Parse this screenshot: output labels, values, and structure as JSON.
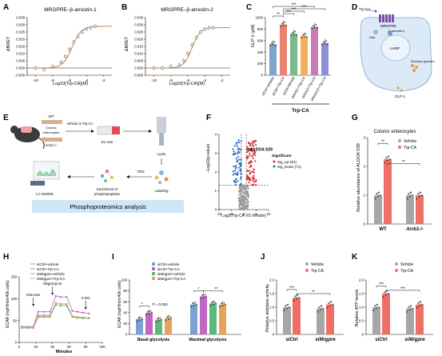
{
  "panels": {
    "A": {
      "letter": "A",
      "title": "MRGPRE–β-arrestin-1",
      "ylabel": "ΔBRET",
      "xlabel": "Log10[Trp-CA](M)",
      "ymin": -0.005,
      "ymax": 0.035,
      "yticks": [
        "-0.005",
        "0.000",
        "0.005",
        "0.010",
        "0.015",
        "0.020",
        "0.025",
        "0.030",
        "0.035"
      ],
      "xmin": -11,
      "xmax": -1,
      "xticks": [
        "-10",
        "-8",
        "-6",
        "-4",
        "-2"
      ],
      "points": [
        {
          "x": -10,
          "y": 0.0
        },
        {
          "x": -9,
          "y": -0.001
        },
        {
          "x": -8,
          "y": 0.001
        },
        {
          "x": -7,
          "y": 0.004
        },
        {
          "x": -6.5,
          "y": 0.008
        },
        {
          "x": -6,
          "y": 0.013
        },
        {
          "x": -5.5,
          "y": 0.018
        },
        {
          "x": -5,
          "y": 0.022
        },
        {
          "x": -4.5,
          "y": 0.025
        },
        {
          "x": -4,
          "y": 0.027
        },
        {
          "x": -3.5,
          "y": 0.028
        },
        {
          "x": -3,
          "y": 0.029
        }
      ],
      "fit": {
        "bottom": 0.0,
        "top": 0.029,
        "logec50": -5.7,
        "hill": 0.8
      }
    },
    "B": {
      "letter": "B",
      "title": "MRGPRE–β-arrestin-2",
      "ylabel": "ΔBRET",
      "xlabel": "Log10[Trp-CA](M)",
      "ymin": -0.005,
      "ymax": 0.035,
      "yticks": [
        "-0.005",
        "0.000",
        "0.005",
        "0.010",
        "0.015",
        "0.020",
        "0.025",
        "0.030",
        "0.035"
      ],
      "xmin": -11,
      "xmax": -1,
      "xticks": [
        "-10",
        "-8",
        "-6",
        "-4",
        "-2"
      ],
      "points": [
        {
          "x": -10,
          "y": 0.0
        },
        {
          "x": -9,
          "y": 0.0
        },
        {
          "x": -8,
          "y": 0.001
        },
        {
          "x": -7,
          "y": 0.002
        },
        {
          "x": -6.5,
          "y": 0.005
        },
        {
          "x": -6,
          "y": 0.01
        },
        {
          "x": -5.5,
          "y": 0.016
        },
        {
          "x": -5,
          "y": 0.021
        },
        {
          "x": -4.5,
          "y": 0.025
        },
        {
          "x": -4,
          "y": 0.027
        },
        {
          "x": -3.5,
          "y": 0.028
        },
        {
          "x": -3,
          "y": 0.028
        }
      ],
      "fit": {
        "bottom": 0.0,
        "top": 0.028,
        "logec50": -5.5,
        "hill": 0.9
      }
    },
    "C": {
      "letter": "C",
      "ylabel": "GLP-1 (pM)",
      "ymax": 1000,
      "yticks": [
        "0",
        "200",
        "400",
        "600",
        "800",
        "1000"
      ],
      "categories": [
        "siCtrl+vehicle",
        "siCtrl+Trp-CA",
        "siCtrl+NF449",
        "siArrb1+Trp-CA",
        "siArrb2+Trp-CA",
        "siArrb1/2+Trp-CA"
      ],
      "values": [
        540,
        880,
        720,
        680,
        840,
        560
      ],
      "bar_colors": [
        "#7ea3cf",
        "#e9836f",
        "#79b98c",
        "#f2b25d",
        "#c97bb6",
        "#8b8fd6"
      ],
      "group_label": "Trp-CA",
      "stars": [
        "**",
        "***",
        "***",
        "***",
        "***"
      ]
    },
    "D": {
      "letter": "D",
      "labels": {
        "ligand": "Trp-CA",
        "receptor": "MRGPRE",
        "gs": "Gαs",
        "barr": "β-arrestin-1",
        "camp": "cAMP",
        "glp1": "GLP-1",
        "granule": "Secretory granules"
      }
    },
    "E": {
      "letter": "E",
      "wt": "WT",
      "ko": "Arrb1-/-",
      "colonic": "Colonic",
      "enterocytes": "enterocytes",
      "treatment": "Vehicle or Trp-CA",
      "exvivo": "Ex vivo",
      "lysis": "Lysis",
      "tio2": "TiO2",
      "labeling": "Labeling",
      "enrichment": "Enrichment of",
      "phospho": "phosphopeptides",
      "lcms": "LC-MS/MS",
      "banner": "Phosphoproteomics analysis"
    },
    "F": {
      "letter": "F",
      "ylabel": "−Log10(p-value)",
      "xlabel": "Log2(Trp-CA VS Vehicle)",
      "hit": "ALDOA S39",
      "legend_title": "Significant",
      "legend_up": "Sig_Up (91)",
      "legend_down": "Sig_Down (71)",
      "xmin": -10,
      "xmax": 10,
      "xticks": [
        "-10",
        "-5",
        "0",
        "5",
        "10"
      ],
      "ymin": 0,
      "ymax": 4,
      "yticks": [
        "0",
        "1",
        "2",
        "3",
        "4"
      ],
      "up_color": "#d6333f",
      "down_color": "#2f6fbd",
      "ns_color": "#9a9a9a"
    },
    "G": {
      "letter": "G",
      "title": "Colonic enterocytes",
      "ylabel": "Relative abundance of ALDOA S39",
      "ymax": 3,
      "yticks": [
        "0",
        "1",
        "2",
        "3"
      ],
      "groups": [
        "WT",
        "Arrb1-/-"
      ],
      "series": [
        {
          "name": "Vehicle",
          "values": [
            1.0,
            1.0
          ]
        },
        {
          "name": "Trp-CA",
          "values": [
            2.25,
            1.0
          ]
        }
      ],
      "colors": [
        "#a6a6a6",
        "#ef6f66"
      ],
      "stars": [
        "**",
        "**"
      ]
    },
    "H": {
      "letter": "H",
      "ylabel": "ECAR (mpH/min/40k cells)",
      "xlabel": "Minutes",
      "ymin": 0,
      "ymax": 150,
      "yticks": [
        "0",
        "50",
        "100",
        "150"
      ],
      "xmin": 0,
      "xmax": 100,
      "xticks": [
        "0",
        "20",
        "40",
        "60",
        "80",
        "100"
      ],
      "x": [
        3,
        10,
        17,
        23,
        30,
        37,
        44,
        50,
        57,
        64,
        70,
        77,
        84
      ],
      "series": [
        {
          "name": "siCtrl+vehicle",
          "color": "#7aa0d4",
          "values": [
            34,
            34,
            34,
            62,
            62,
            62,
            90,
            88,
            87,
            60,
            58,
            56,
            56
          ]
        },
        {
          "name": "siCtrl+Trp-CA",
          "color": "#c066c7",
          "values": [
            36,
            36,
            36,
            70,
            70,
            70,
            106,
            104,
            104,
            72,
            70,
            68,
            66
          ]
        },
        {
          "name": "siMrgpre+vehicle",
          "color": "#5ab97b",
          "values": [
            33,
            33,
            33,
            58,
            58,
            58,
            86,
            84,
            84,
            58,
            56,
            55,
            55
          ]
        },
        {
          "name": "siMrgpre+Trp-CA",
          "color": "#e8a25a",
          "values": [
            34,
            34,
            34,
            60,
            60,
            60,
            90,
            88,
            88,
            60,
            58,
            57,
            56
          ]
        }
      ],
      "annotations": [
        "Glucose",
        "Oligomycin",
        "2-DG"
      ],
      "annotation_x": [
        17,
        40,
        80
      ]
    },
    "I": {
      "letter": "I",
      "ylabel": "ECAR (mpH/min/40k cells)",
      "ymax": 100,
      "yticks": [
        "0",
        "20",
        "40",
        "60",
        "80",
        "100"
      ],
      "groups": [
        "Basal glycolysis",
        "Maximal glycolysis"
      ],
      "series": [
        {
          "name": "siCtrl+vehicle",
          "values": [
            28,
            55
          ]
        },
        {
          "name": "siCtrl+Trp-CA",
          "values": [
            40,
            70
          ]
        },
        {
          "name": "siMrgpre+vehicle",
          "values": [
            27,
            57
          ]
        },
        {
          "name": "siMrgpre+Trp-CA",
          "values": [
            30,
            55
          ]
        }
      ],
      "colors": [
        "#7aa0d4",
        "#c066c7",
        "#5ab97b",
        "#e8a25a"
      ],
      "p_label": "P = 0.053",
      "stars": [
        "*",
        "*",
        "**"
      ]
    },
    "J": {
      "letter": "J",
      "ylabel": "Relative aldolase activity",
      "ymax": 2.0,
      "yticks": [
        "0",
        "0.5",
        "1.0",
        "1.5",
        "2.0"
      ],
      "groups": [
        "siCtrl",
        "siMrgpre"
      ],
      "series": [
        {
          "name": "Vehicle",
          "values": [
            1.0,
            0.95
          ]
        },
        {
          "name": "Trp-CA",
          "values": [
            1.35,
            1.1
          ]
        }
      ],
      "colors": [
        "#a6a6a6",
        "#ef6f66"
      ],
      "stars": [
        "***",
        "**"
      ]
    },
    "K": {
      "letter": "K",
      "ylabel": "Relative ATP levels",
      "ymax": 2.0,
      "yticks": [
        "0",
        "0.5",
        "1.0",
        "1.5",
        "2.0"
      ],
      "groups": [
        "siCtrl",
        "siMrgpre"
      ],
      "series": [
        {
          "name": "Vehicle",
          "values": [
            1.0,
            0.95
          ]
        },
        {
          "name": "Trp-CA",
          "values": [
            1.5,
            1.1
          ]
        }
      ],
      "colors": [
        "#a6a6a6",
        "#ef6f66"
      ],
      "stars": [
        "***",
        "***"
      ]
    }
  },
  "chart_data": [
    {
      "type": "scatter",
      "title": "MRGPRE–β-arrestin-1",
      "xlabel": "Log10[Trp-CA](M)",
      "ylabel": "ΔBRET",
      "x": [
        -10,
        -9,
        -8,
        -7,
        -6.5,
        -6,
        -5.5,
        -5,
        -4.5,
        -4,
        -3.5,
        -3
      ],
      "values": [
        0.0,
        -0.001,
        0.001,
        0.004,
        0.008,
        0.013,
        0.018,
        0.022,
        0.025,
        0.027,
        0.028,
        0.029
      ],
      "ylim": [
        -0.005,
        0.035
      ]
    },
    {
      "type": "scatter",
      "title": "MRGPRE–β-arrestin-2",
      "xlabel": "Log10[Trp-CA](M)",
      "ylabel": "ΔBRET",
      "x": [
        -10,
        -9,
        -8,
        -7,
        -6.5,
        -6,
        -5.5,
        -5,
        -4.5,
        -4,
        -3.5,
        -3
      ],
      "values": [
        0.0,
        0.0,
        0.001,
        0.002,
        0.005,
        0.01,
        0.016,
        0.021,
        0.025,
        0.027,
        0.028,
        0.028
      ],
      "ylim": [
        -0.005,
        0.035
      ]
    },
    {
      "type": "bar",
      "categories": [
        "siCtrl+vehicle",
        "siCtrl+Trp-CA",
        "siCtrl+NF449",
        "siArrb1+Trp-CA",
        "siArrb2+Trp-CA",
        "siArrb1/2+Trp-CA"
      ],
      "values": [
        540,
        880,
        720,
        680,
        840,
        560
      ],
      "ylabel": "GLP-1 (pM)",
      "ylim": [
        0,
        1000
      ]
    },
    {
      "type": "bar",
      "title": "Colonic enterocytes",
      "categories": [
        "WT",
        "Arrb1-/-"
      ],
      "series": [
        {
          "name": "Vehicle",
          "values": [
            1.0,
            1.0
          ]
        },
        {
          "name": "Trp-CA",
          "values": [
            2.25,
            1.0
          ]
        }
      ],
      "ylabel": "Relative abundance of ALDOA S39",
      "ylim": [
        0,
        3
      ]
    },
    {
      "type": "line",
      "xlabel": "Minutes",
      "ylabel": "ECAR (mpH/min/40k cells)",
      "x": [
        3,
        10,
        17,
        23,
        30,
        37,
        44,
        50,
        57,
        64,
        70,
        77,
        84
      ],
      "series": [
        {
          "name": "siCtrl+vehicle",
          "values": [
            34,
            34,
            34,
            62,
            62,
            62,
            90,
            88,
            87,
            60,
            58,
            56,
            56
          ]
        },
        {
          "name": "siCtrl+Trp-CA",
          "values": [
            36,
            36,
            36,
            70,
            70,
            70,
            106,
            104,
            104,
            72,
            70,
            68,
            66
          ]
        },
        {
          "name": "siMrgpre+vehicle",
          "values": [
            33,
            33,
            33,
            58,
            58,
            58,
            86,
            84,
            84,
            58,
            56,
            55,
            55
          ]
        },
        {
          "name": "siMrgpre+Trp-CA",
          "values": [
            34,
            34,
            34,
            60,
            60,
            60,
            90,
            88,
            88,
            60,
            58,
            57,
            56
          ]
        }
      ],
      "ylim": [
        0,
        150
      ]
    },
    {
      "type": "bar",
      "categories": [
        "Basal glycolysis",
        "Maximal glycolysis"
      ],
      "series": [
        {
          "name": "siCtrl+vehicle",
          "values": [
            28,
            55
          ]
        },
        {
          "name": "siCtrl+Trp-CA",
          "values": [
            40,
            70
          ]
        },
        {
          "name": "siMrgpre+vehicle",
          "values": [
            27,
            57
          ]
        },
        {
          "name": "siMrgpre+Trp-CA",
          "values": [
            30,
            55
          ]
        }
      ],
      "ylabel": "ECAR (mpH/min/40k cells)",
      "ylim": [
        0,
        100
      ]
    },
    {
      "type": "bar",
      "categories": [
        "siCtrl",
        "siMrgpre"
      ],
      "series": [
        {
          "name": "Vehicle",
          "values": [
            1.0,
            0.95
          ]
        },
        {
          "name": "Trp-CA",
          "values": [
            1.35,
            1.1
          ]
        }
      ],
      "ylabel": "Relative aldolase activity",
      "ylim": [
        0,
        2
      ]
    },
    {
      "type": "bar",
      "categories": [
        "siCtrl",
        "siMrgpre"
      ],
      "series": [
        {
          "name": "Vehicle",
          "values": [
            1.0,
            0.95
          ]
        },
        {
          "name": "Trp-CA",
          "values": [
            1.5,
            1.1
          ]
        }
      ],
      "ylabel": "Relative ATP levels",
      "ylim": [
        0,
        2
      ]
    }
  ]
}
